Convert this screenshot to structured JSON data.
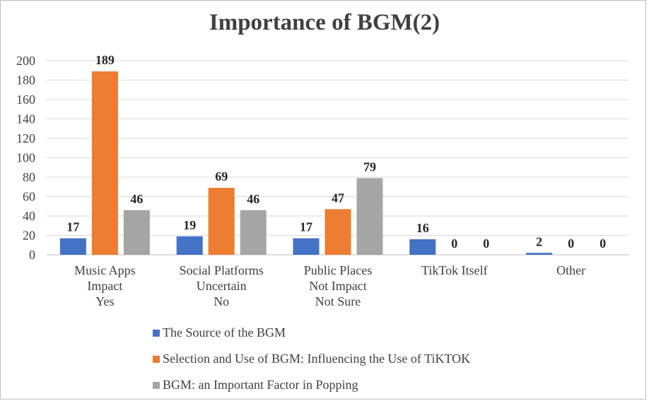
{
  "chart_data": {
    "type": "bar",
    "title": "Importance of BGM(2)",
    "categories": [
      [
        "Music Apps",
        "Impact",
        "Yes"
      ],
      [
        "Social Platforms",
        "Uncertain",
        "No"
      ],
      [
        "Public Places",
        "Not Impact",
        "Not Sure"
      ],
      [
        "TikTok Itself"
      ],
      [
        "Other"
      ]
    ],
    "series": [
      {
        "name": "The Source of the BGM",
        "color": "#4472c4",
        "values": [
          17,
          19,
          17,
          16,
          2
        ]
      },
      {
        "name": "Selection and Use of BGM: Influencing the Use of TiKTOK",
        "color": "#ed7d31",
        "values": [
          189,
          69,
          47,
          0,
          0
        ]
      },
      {
        "name": "BGM: an Important Factor in Popping",
        "color": "#a5a5a5",
        "values": [
          46,
          46,
          79,
          0,
          0
        ]
      }
    ],
    "ylim": [
      0,
      200
    ],
    "yticks": [
      0,
      20,
      40,
      60,
      80,
      100,
      120,
      140,
      160,
      180,
      200
    ],
    "grid": true,
    "legend_position": "bottom"
  }
}
